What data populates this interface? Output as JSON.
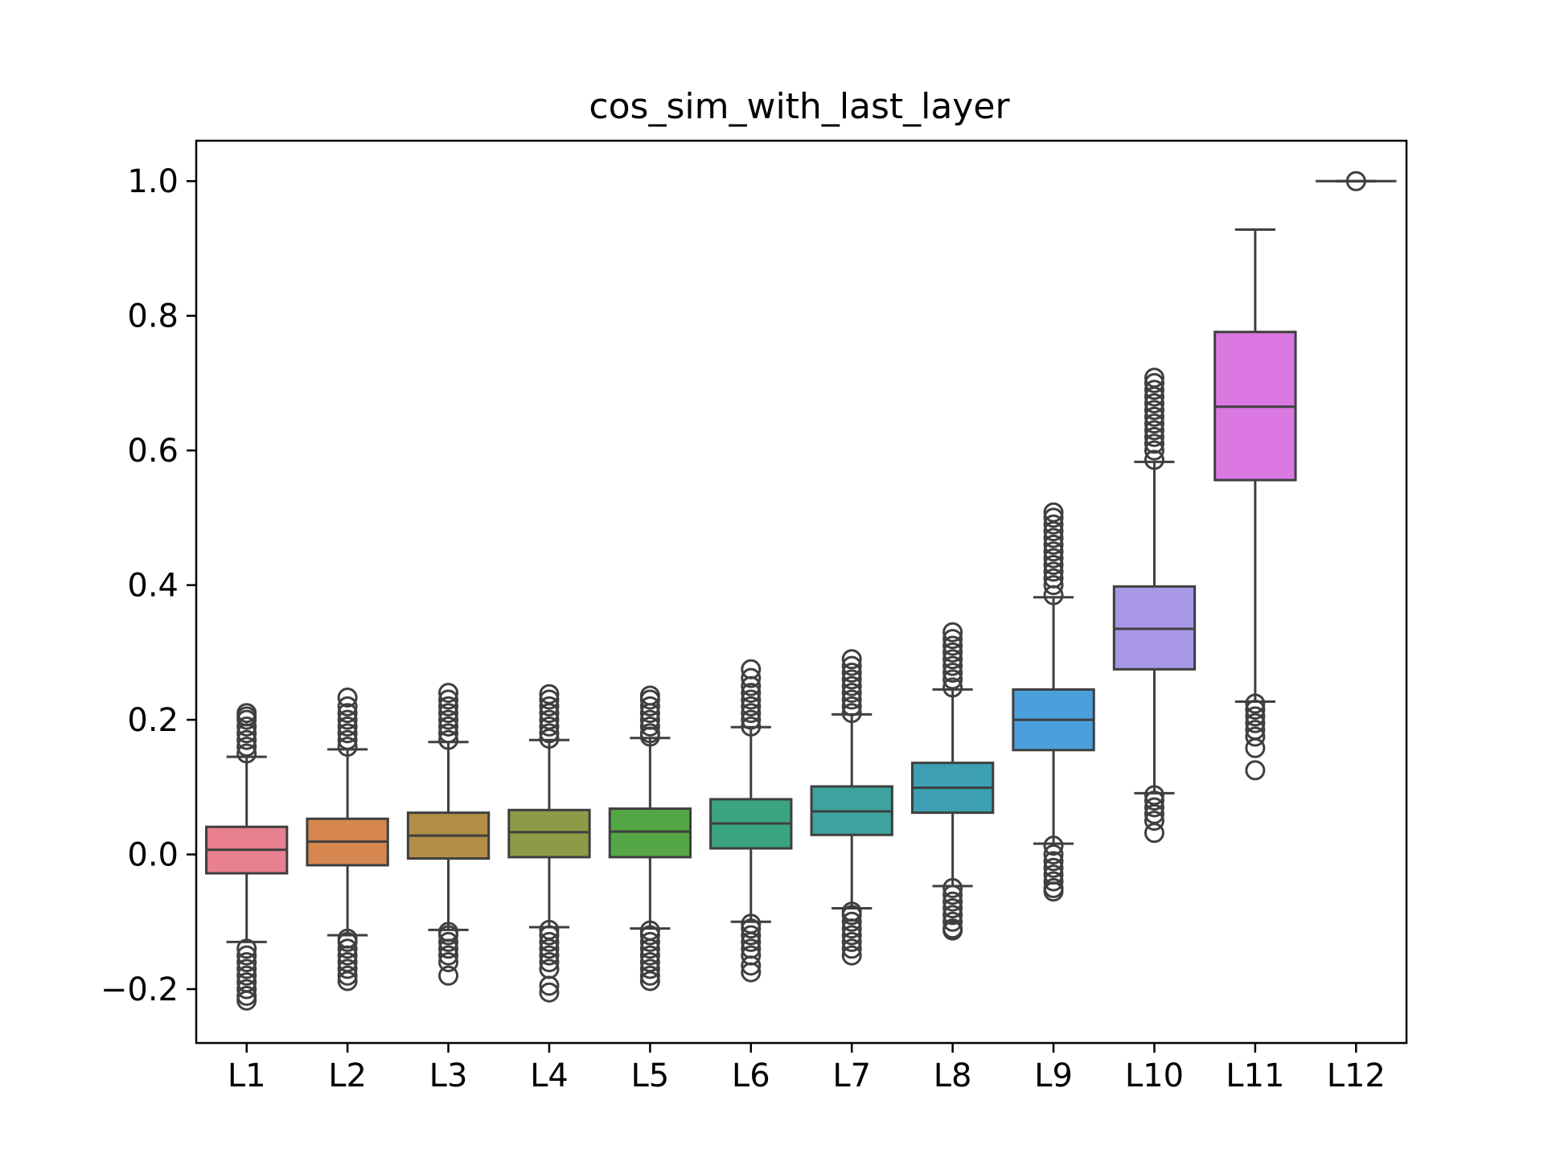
{
  "chart_data": {
    "type": "boxplot",
    "title": "cos_sim_with_last_layer",
    "xlabel": "",
    "ylabel": "",
    "ylim": [
      -0.28,
      1.06
    ],
    "yticks": [
      -0.2,
      0.0,
      0.2,
      0.4,
      0.6,
      0.8,
      1.0
    ],
    "ytick_labels": [
      "−0.2",
      "0.0",
      "0.2",
      "0.4",
      "0.6",
      "0.8",
      "1.0"
    ],
    "grid": false,
    "categories": [
      "L1",
      "L2",
      "L3",
      "L4",
      "L5",
      "L6",
      "L7",
      "L8",
      "L9",
      "L10",
      "L11",
      "L12"
    ],
    "boxes": [
      {
        "label": "L1",
        "whislo": -0.13,
        "q1": -0.028,
        "median": 0.007,
        "q3": 0.041,
        "whishi": 0.145,
        "color": "#e8808f",
        "fliers_high": [
          0.15,
          0.16,
          0.17,
          0.18,
          0.19,
          0.2,
          0.205,
          0.21
        ],
        "fliers_low": [
          -0.14,
          -0.15,
          -0.16,
          -0.17,
          -0.18,
          -0.19,
          -0.2,
          -0.21,
          -0.217
        ]
      },
      {
        "label": "L2",
        "whislo": -0.12,
        "q1": -0.016,
        "median": 0.019,
        "q3": 0.053,
        "whishi": 0.156,
        "color": "#d6874f",
        "fliers_high": [
          0.16,
          0.17,
          0.18,
          0.19,
          0.2,
          0.21,
          0.22,
          0.233
        ],
        "fliers_low": [
          -0.125,
          -0.13,
          -0.14,
          -0.15,
          -0.16,
          -0.17,
          -0.18,
          -0.188
        ]
      },
      {
        "label": "L3",
        "whislo": -0.112,
        "q1": -0.006,
        "median": 0.028,
        "q3": 0.062,
        "whishi": 0.167,
        "color": "#b18d45",
        "fliers_high": [
          0.17,
          0.18,
          0.19,
          0.2,
          0.21,
          0.22,
          0.23,
          0.24
        ],
        "fliers_low": [
          -0.115,
          -0.12,
          -0.13,
          -0.14,
          -0.15,
          -0.16,
          -0.18
        ]
      },
      {
        "label": "L4",
        "whislo": -0.108,
        "q1": -0.004,
        "median": 0.033,
        "q3": 0.066,
        "whishi": 0.17,
        "color": "#8e9a46",
        "fliers_high": [
          0.172,
          0.18,
          0.19,
          0.2,
          0.21,
          0.22,
          0.23,
          0.238
        ],
        "fliers_low": [
          -0.112,
          -0.12,
          -0.13,
          -0.14,
          -0.15,
          -0.16,
          -0.17,
          -0.195,
          -0.205
        ]
      },
      {
        "label": "L5",
        "whislo": -0.11,
        "q1": -0.004,
        "median": 0.034,
        "q3": 0.068,
        "whishi": 0.173,
        "color": "#55a745",
        "fliers_high": [
          0.175,
          0.18,
          0.19,
          0.2,
          0.21,
          0.22,
          0.23,
          0.236
        ],
        "fliers_low": [
          -0.113,
          -0.12,
          -0.13,
          -0.14,
          -0.15,
          -0.16,
          -0.17,
          -0.18,
          -0.188
        ]
      },
      {
        "label": "L6",
        "whislo": -0.1,
        "q1": 0.009,
        "median": 0.046,
        "q3": 0.082,
        "whishi": 0.189,
        "color": "#3aa382",
        "fliers_high": [
          0.19,
          0.2,
          0.21,
          0.22,
          0.23,
          0.24,
          0.25,
          0.262,
          0.275
        ],
        "fliers_low": [
          -0.103,
          -0.11,
          -0.12,
          -0.13,
          -0.14,
          -0.15,
          -0.165,
          -0.175
        ]
      },
      {
        "label": "L7",
        "whislo": -0.08,
        "q1": 0.029,
        "median": 0.064,
        "q3": 0.101,
        "whishi": 0.208,
        "color": "#3ca39e",
        "fliers_high": [
          0.21,
          0.22,
          0.23,
          0.24,
          0.25,
          0.26,
          0.27,
          0.28,
          0.29
        ],
        "fliers_low": [
          -0.085,
          -0.09,
          -0.1,
          -0.11,
          -0.12,
          -0.13,
          -0.14,
          -0.15
        ]
      },
      {
        "label": "L8",
        "whislo": -0.047,
        "q1": 0.062,
        "median": 0.099,
        "q3": 0.136,
        "whishi": 0.245,
        "color": "#3da0b3",
        "fliers_high": [
          0.248,
          0.26,
          0.27,
          0.28,
          0.29,
          0.3,
          0.31,
          0.32,
          0.33
        ],
        "fliers_low": [
          -0.05,
          -0.06,
          -0.07,
          -0.08,
          -0.09,
          -0.1,
          -0.11,
          -0.113
        ]
      },
      {
        "label": "L9",
        "whislo": 0.016,
        "q1": 0.155,
        "median": 0.2,
        "q3": 0.245,
        "whishi": 0.382,
        "color": "#4ba0dc",
        "fliers_high": [
          0.385,
          0.4,
          0.41,
          0.42,
          0.43,
          0.44,
          0.45,
          0.46,
          0.47,
          0.48,
          0.49,
          0.5,
          0.508
        ],
        "fliers_low": [
          0.013,
          0.0,
          -0.01,
          -0.02,
          -0.03,
          -0.04,
          -0.05,
          -0.055
        ]
      },
      {
        "label": "L10",
        "whislo": 0.091,
        "q1": 0.275,
        "median": 0.335,
        "q3": 0.398,
        "whishi": 0.583,
        "color": "#a897e5",
        "fliers_high": [
          0.586,
          0.6,
          0.61,
          0.62,
          0.63,
          0.64,
          0.65,
          0.66,
          0.67,
          0.68,
          0.69,
          0.7,
          0.708
        ],
        "fliers_low": [
          0.088,
          0.08,
          0.07,
          0.06,
          0.05,
          0.032
        ]
      },
      {
        "label": "L11",
        "whislo": 0.227,
        "q1": 0.556,
        "median": 0.665,
        "q3": 0.776,
        "whishi": 0.928,
        "color": "#db78e1",
        "fliers_high": [],
        "fliers_low": [
          0.224,
          0.215,
          0.205,
          0.195,
          0.185,
          0.175,
          0.158,
          0.125
        ]
      },
      {
        "label": "L12",
        "whislo": 1.0,
        "q1": 1.0,
        "median": 1.0,
        "q3": 1.0,
        "whishi": 1.0,
        "color": "#e57fb8",
        "fliers_high": [
          1.0
        ],
        "fliers_low": []
      }
    ]
  }
}
